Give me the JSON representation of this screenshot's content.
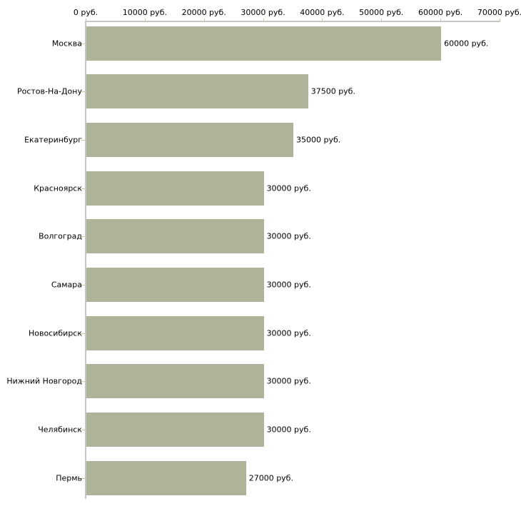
{
  "chart_data": {
    "type": "bar",
    "orientation": "horizontal",
    "title": "",
    "xlabel": "",
    "ylabel": "",
    "unit": "руб.",
    "categories": [
      "Москва",
      "Ростов-На-Дону",
      "Екатеринбург",
      "Красноярск",
      "Волгоград",
      "Самара",
      "Новосибирск",
      "Нижний Новгород",
      "Челябинск",
      "Пермь"
    ],
    "values": [
      60000,
      37500,
      35000,
      30000,
      30000,
      30000,
      30000,
      30000,
      30000,
      27000
    ],
    "value_labels": [
      "60000 руб.",
      "37500 руб.",
      "35000 руб.",
      "30000 руб.",
      "30000 руб.",
      "30000 руб.",
      "30000 руб.",
      "30000 руб.",
      "30000 руб.",
      "27000 руб."
    ],
    "x_axis": {
      "position": "top",
      "min": 0,
      "max": 70000,
      "tick_values": [
        0,
        10000,
        20000,
        30000,
        40000,
        50000,
        60000,
        70000
      ],
      "tick_labels": [
        "0 руб.",
        "10000 руб.",
        "20000 руб.",
        "30000 руб.",
        "40000 руб.",
        "50000 руб.",
        "60000 руб.",
        "70000 руб."
      ]
    },
    "grid": false,
    "legend": false,
    "colors": {
      "bar_fill": "#adb499",
      "axis_line": "#c6c6c6",
      "tick_mark": "#ccc8a3",
      "text": "#000000",
      "background": "#ffffff"
    }
  }
}
